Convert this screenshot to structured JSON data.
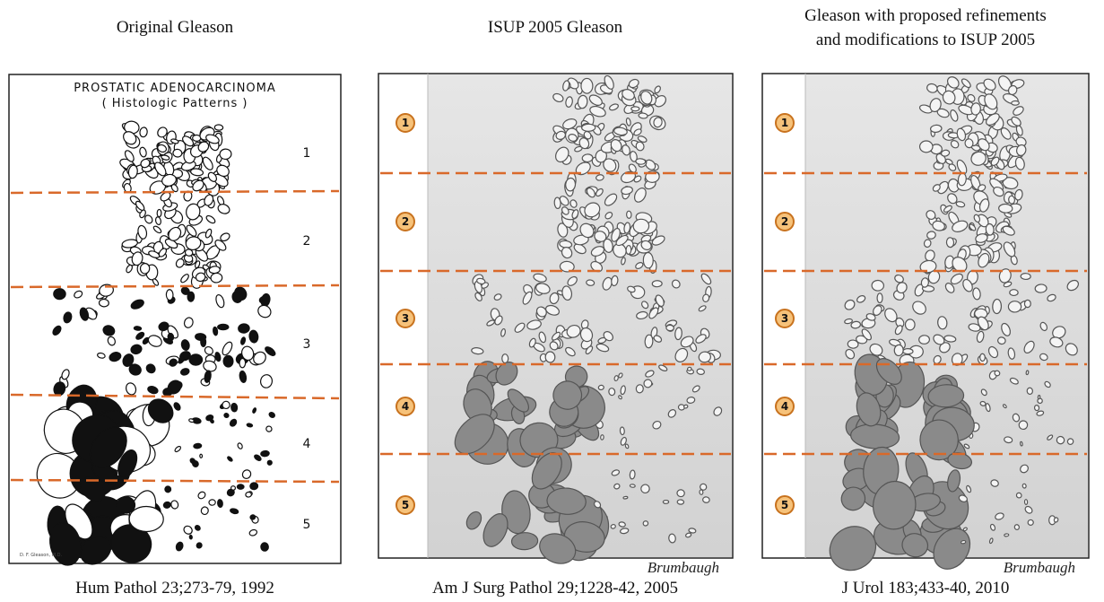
{
  "panels": [
    {
      "title": [
        "Original Gleason"
      ],
      "citation": "Hum Pathol 23;273-79, 1992",
      "heading": "PROSTATIC ADENOCARCINOMA",
      "subheading": "( Histologic Patterns )",
      "patterns": [
        "1",
        "2",
        "3",
        "4",
        "5"
      ],
      "signature": "D. F. Gleason, M.D."
    },
    {
      "title": [
        "ISUP 2005 Gleason"
      ],
      "citation": "Am J Surg Pathol 29;1228-42, 2005",
      "patterns": [
        "1",
        "2",
        "3",
        "4",
        "5"
      ],
      "signature": "Brumbaugh"
    },
    {
      "title": [
        "Gleason with proposed refinements",
        "and modifications to ISUP 2005"
      ],
      "citation": "J Urol 183;433-40, 2010",
      "patterns": [
        "1",
        "2",
        "3",
        "4",
        "5"
      ],
      "signature": "Brumbaugh"
    }
  ]
}
